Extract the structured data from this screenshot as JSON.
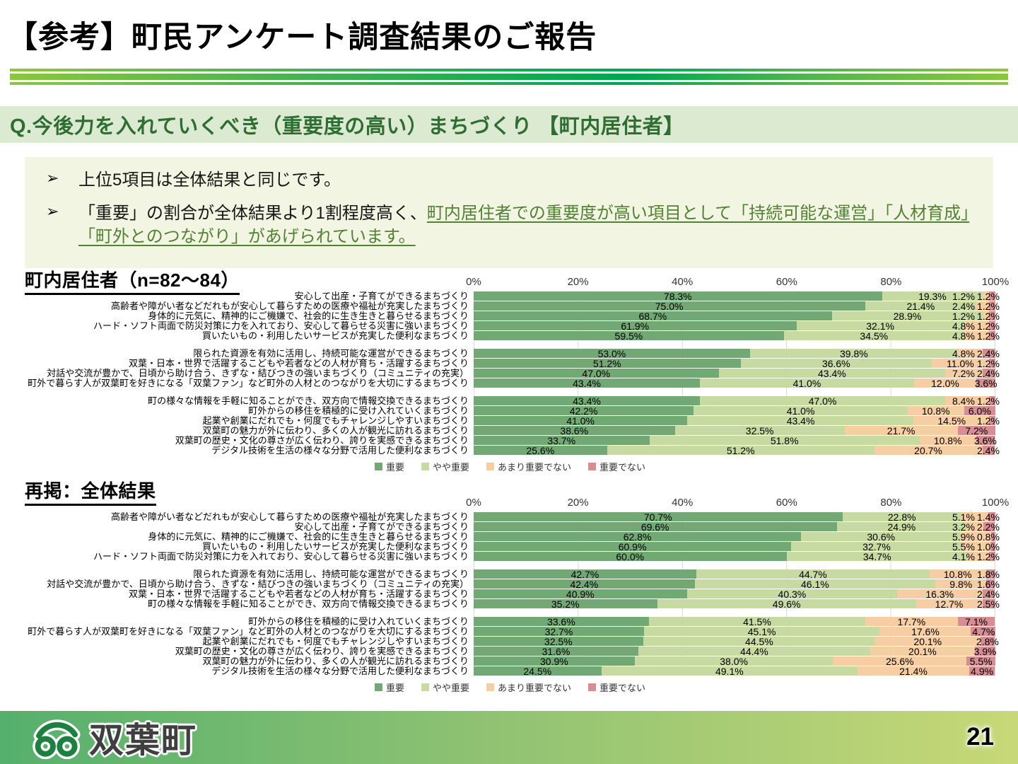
{
  "slide": {
    "title": "【参考】町民アンケート調査結果のご報告",
    "question_header": "Q.今後力を入れていくべき（重要度の高い）まちづくり 【町内居住者】",
    "bullets": [
      {
        "text": "上位5項目は全体結果と同じです。",
        "highlight": ""
      },
      {
        "text": "「重要」の割合が全体結果より1割程度高く、",
        "highlight": "町内居住者での重要度が高い項目として「持続可能な運営」「人材育成」「町外とのつながり」があげられています。"
      }
    ],
    "logo_text": "双葉町",
    "page_number": "21"
  },
  "colors": {
    "important": "#71a874",
    "somewhat_important": "#c6daa2",
    "not_very_important": "#f7cda3",
    "not_important": "#d78e92",
    "accent_green": "#538135",
    "header_bg": "#dcead2",
    "note_bg": "#f2f5e1"
  },
  "chart_data": [
    {
      "type": "bar",
      "orientation": "horizontal-stacked",
      "section_title": "町内居住者（n=82～84）",
      "x_ticks": [
        "0%",
        "20%",
        "40%",
        "60%",
        "80%",
        "100%"
      ],
      "xlim": [
        0,
        100
      ],
      "legend": [
        "重要",
        "やや重要",
        "あまり重要でない",
        "重要でない"
      ],
      "rows": [
        {
          "group": 0,
          "label": "安心して出産・子育てができるまちづくり",
          "values": [
            78.3,
            19.3,
            1.2,
            1.2
          ]
        },
        {
          "group": 0,
          "label": "高齢者や障がい者などだれもが安心して暮らすための医療や福祉が充実したまちづくり",
          "values": [
            75.0,
            21.4,
            2.4,
            1.2
          ]
        },
        {
          "group": 0,
          "label": "身体的に元気に、精神的にご機嫌で、社会的に生き生きと暮らせるまちづくり",
          "values": [
            68.7,
            28.9,
            1.2,
            1.2
          ]
        },
        {
          "group": 0,
          "label": "ハード・ソフト両面で防災対策に力を入れており、安心して暮らせる災害に強いまちづくり",
          "values": [
            61.9,
            32.1,
            4.8,
            1.2
          ]
        },
        {
          "group": 0,
          "label": "買いたいもの・利用したいサービスが充実した便利なまちづくり",
          "values": [
            59.5,
            34.5,
            4.8,
            1.2
          ]
        },
        {
          "group": 1,
          "label": "限られた資源を有効に活用し、持続可能な運営ができるまちづくり",
          "values": [
            53.0,
            39.8,
            4.8,
            2.4
          ]
        },
        {
          "group": 1,
          "label": "双葉・日本・世界で活躍するこどもや若者などの人材が育ち・活躍するまちづくり",
          "values": [
            51.2,
            36.6,
            11.0,
            1.2
          ]
        },
        {
          "group": 1,
          "label": "対話や交流が豊かで、日頃から助け合う、きずな・結びつきの強いまちづくり（コミュニティの充実）",
          "values": [
            47.0,
            43.4,
            7.2,
            2.4
          ]
        },
        {
          "group": 1,
          "label": "町外で暮らす人が双葉町を好きになる「双葉ファン」など町外の人材とのつながりを大切にするまちづくり",
          "values": [
            43.4,
            41.0,
            12.0,
            3.6
          ]
        },
        {
          "group": 2,
          "label": "町の様々な情報を手軽に知ることができ、双方向で情報交換できるまちづくり",
          "values": [
            43.4,
            47.0,
            8.4,
            1.2
          ]
        },
        {
          "group": 2,
          "label": "町外からの移住を積極的に受け入れていくまちづくり",
          "values": [
            42.2,
            41.0,
            10.8,
            6.0
          ]
        },
        {
          "group": 2,
          "label": "起業や創業にだれでも・何度でもチャレンジしやすいまちづくり",
          "values": [
            41.0,
            43.4,
            14.5,
            1.2
          ]
        },
        {
          "group": 2,
          "label": "双葉町の魅力が外に伝わり、多くの人が観光に訪れるまちづくり",
          "values": [
            38.6,
            32.5,
            21.7,
            7.2
          ]
        },
        {
          "group": 2,
          "label": "双葉町の歴史・文化の尊さが広く伝わり、誇りを実感できるまちづくり",
          "values": [
            33.7,
            51.8,
            10.8,
            3.6
          ]
        },
        {
          "group": 2,
          "label": "デジタル技術を生活の様々な分野で活用した便利なまちづくり",
          "values": [
            25.6,
            51.2,
            20.7,
            2.4
          ]
        }
      ]
    },
    {
      "type": "bar",
      "orientation": "horizontal-stacked",
      "section_title": "再掲：全体結果",
      "x_ticks": [
        "0%",
        "20%",
        "40%",
        "60%",
        "80%",
        "100%"
      ],
      "xlim": [
        0,
        100
      ],
      "legend": [
        "重要",
        "やや重要",
        "あまり重要でない",
        "重要でない"
      ],
      "rows": [
        {
          "group": 0,
          "label": "高齢者や障がい者などだれもが安心して暮らすための医療や福祉が充実したまちづくり",
          "values": [
            70.7,
            22.8,
            5.1,
            1.4
          ]
        },
        {
          "group": 0,
          "label": "安心して出産・子育てができるまちづくり",
          "values": [
            69.6,
            24.9,
            3.2,
            2.2
          ]
        },
        {
          "group": 0,
          "label": "身体的に元気に、精神的にご機嫌で、社会的に生き生きと暮らせるまちづくり",
          "values": [
            62.8,
            30.6,
            5.9,
            0.8
          ]
        },
        {
          "group": 0,
          "label": "買いたいもの・利用したいサービスが充実した便利なまちづくり",
          "values": [
            60.9,
            32.7,
            5.5,
            1.0
          ]
        },
        {
          "group": 0,
          "label": "ハード・ソフト両面で防災対策に力を入れており、安心して暮らせる災害に強いまちづくり",
          "values": [
            60.0,
            34.7,
            4.1,
            1.2
          ]
        },
        {
          "group": 1,
          "label": "限られた資源を有効に活用し、持続可能な運営ができるまちづくり",
          "values": [
            42.7,
            44.7,
            10.8,
            1.8
          ]
        },
        {
          "group": 1,
          "label": "対話や交流が豊かで、日頃から助け合う、きずな・結びつきの強いまちづくり（コミュニティの充実）",
          "values": [
            42.4,
            46.1,
            9.8,
            1.6
          ]
        },
        {
          "group": 1,
          "label": "双葉・日本・世界で活躍するこどもや若者などの人材が育ち・活躍するまちづくり",
          "values": [
            40.9,
            40.3,
            16.3,
            2.4
          ]
        },
        {
          "group": 1,
          "label": "町の様々な情報を手軽に知ることができ、双方向で情報交換できるまちづくり",
          "values": [
            35.2,
            49.6,
            12.7,
            2.5
          ]
        },
        {
          "group": 2,
          "label": "町外からの移住を積極的に受け入れていくまちづくり",
          "values": [
            33.6,
            41.5,
            17.7,
            7.1
          ]
        },
        {
          "group": 2,
          "label": "町外で暮らす人が双葉町を好きになる「双葉ファン」など町外の人材とのつながりを大切にするまちづくり",
          "values": [
            32.7,
            45.1,
            17.6,
            4.7
          ]
        },
        {
          "group": 2,
          "label": "起業や創業にだれでも・何度でもチャレンジしやすいまちづくり",
          "values": [
            32.5,
            44.5,
            20.1,
            2.8
          ]
        },
        {
          "group": 2,
          "label": "双葉町の歴史・文化の尊さが広く伝わり、誇りを実感できるまちづくり",
          "values": [
            31.6,
            44.4,
            20.1,
            3.9
          ]
        },
        {
          "group": 2,
          "label": "双葉町の魅力が外に伝わり、多くの人が観光に訪れるまちづくり",
          "values": [
            30.9,
            38.0,
            25.6,
            5.5
          ]
        },
        {
          "group": 2,
          "label": "デジタル技術を生活の様々な分野で活用した便利なまちづくり",
          "values": [
            24.5,
            49.1,
            21.4,
            4.9
          ]
        }
      ]
    }
  ]
}
